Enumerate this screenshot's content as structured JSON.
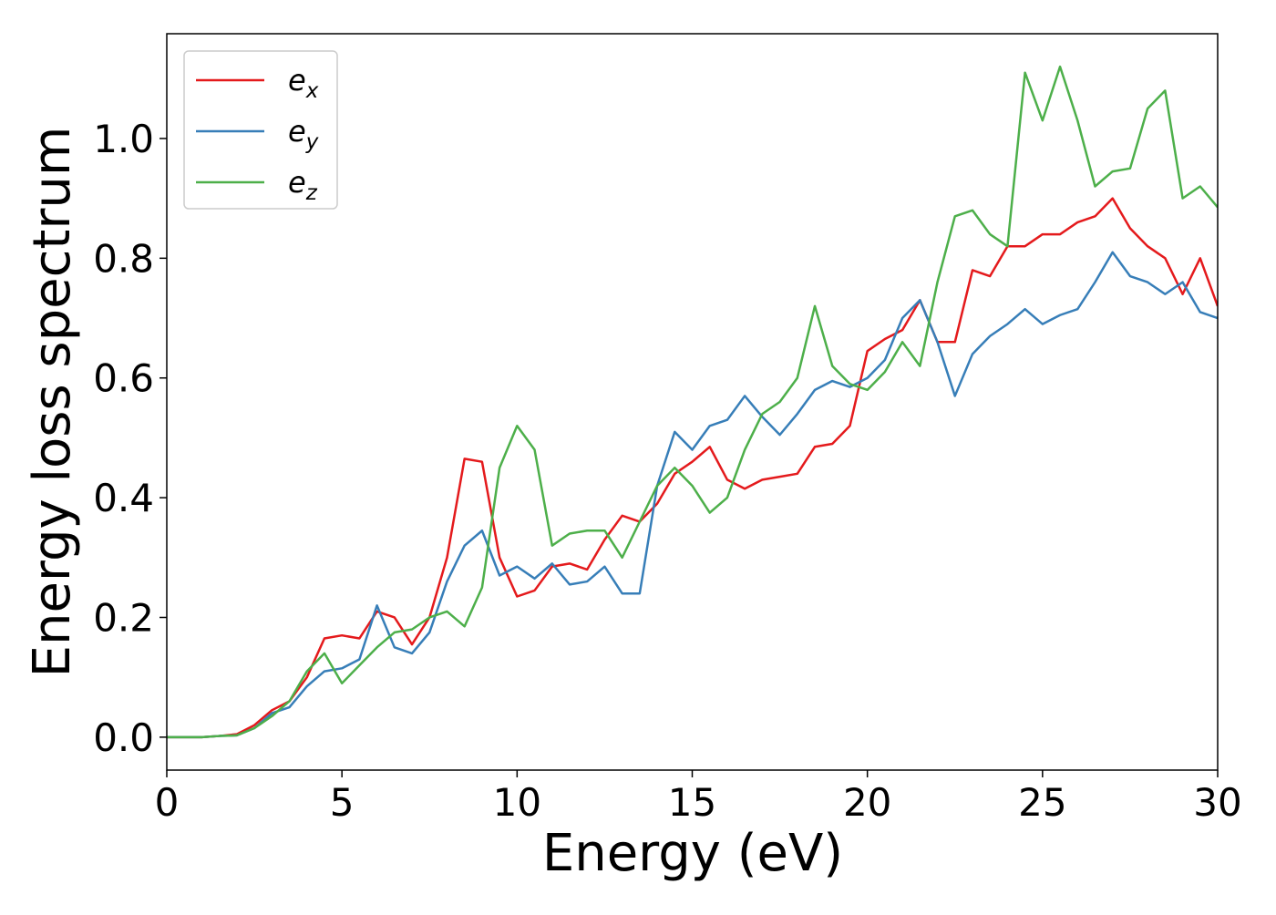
{
  "chart_data": {
    "type": "line",
    "xlabel": "Energy (eV)",
    "ylabel": "Energy loss spectrum",
    "x": [
      0,
      0.5,
      1,
      1.5,
      2,
      2.5,
      3,
      3.5,
      4,
      4.5,
      5,
      5.5,
      6,
      6.5,
      7,
      7.5,
      8,
      8.5,
      9,
      9.5,
      10,
      10.5,
      11,
      11.5,
      12,
      12.5,
      13,
      13.5,
      14,
      14.5,
      15,
      15.5,
      16,
      16.5,
      17,
      17.5,
      18,
      18.5,
      19,
      19.5,
      20,
      20.5,
      21,
      21.5,
      22,
      22.5,
      23,
      23.5,
      24,
      24.5,
      25,
      25.5,
      26,
      26.5,
      27,
      27.5,
      28,
      28.5,
      29,
      29.5,
      30
    ],
    "series": [
      {
        "name": "e",
        "subscript": "x",
        "color": "#e41a1c",
        "values": [
          0,
          0,
          0,
          0.002,
          0.005,
          0.02,
          0.045,
          0.06,
          0.1,
          0.165,
          0.17,
          0.165,
          0.21,
          0.2,
          0.155,
          0.2,
          0.3,
          0.465,
          0.46,
          0.3,
          0.235,
          0.245,
          0.285,
          0.29,
          0.28,
          0.33,
          0.37,
          0.36,
          0.39,
          0.44,
          0.46,
          0.485,
          0.43,
          0.415,
          0.43,
          0.435,
          0.44,
          0.485,
          0.49,
          0.52,
          0.645,
          0.665,
          0.68,
          0.73,
          0.66,
          0.66,
          0.78,
          0.77,
          0.82,
          0.82,
          0.84,
          0.84,
          0.86,
          0.87,
          0.9,
          0.85,
          0.82,
          0.8,
          0.74,
          0.8,
          0.72
        ]
      },
      {
        "name": "e",
        "subscript": "y",
        "color": "#377eb8",
        "values": [
          0,
          0,
          0,
          0.002,
          0.003,
          0.015,
          0.04,
          0.05,
          0.085,
          0.11,
          0.115,
          0.13,
          0.22,
          0.15,
          0.14,
          0.175,
          0.26,
          0.32,
          0.345,
          0.27,
          0.285,
          0.265,
          0.29,
          0.255,
          0.26,
          0.285,
          0.24,
          0.24,
          0.42,
          0.51,
          0.48,
          0.52,
          0.53,
          0.57,
          0.535,
          0.505,
          0.54,
          0.58,
          0.595,
          0.585,
          0.6,
          0.63,
          0.7,
          0.73,
          0.66,
          0.57,
          0.64,
          0.67,
          0.69,
          0.715,
          0.69,
          0.705,
          0.715,
          0.76,
          0.81,
          0.77,
          0.76,
          0.74,
          0.76,
          0.71,
          0.7
        ]
      },
      {
        "name": "e",
        "subscript": "z",
        "color": "#4daf4a",
        "values": [
          0,
          0,
          0,
          0.002,
          0.003,
          0.015,
          0.035,
          0.06,
          0.11,
          0.14,
          0.09,
          0.12,
          0.15,
          0.175,
          0.18,
          0.2,
          0.21,
          0.185,
          0.25,
          0.45,
          0.52,
          0.48,
          0.32,
          0.34,
          0.345,
          0.345,
          0.3,
          0.36,
          0.42,
          0.45,
          0.42,
          0.375,
          0.4,
          0.48,
          0.54,
          0.56,
          0.6,
          0.72,
          0.62,
          0.59,
          0.58,
          0.61,
          0.66,
          0.62,
          0.76,
          0.87,
          0.88,
          0.84,
          0.82,
          1.11,
          1.03,
          1.12,
          1.03,
          0.92,
          0.945,
          0.95,
          1.05,
          1.08,
          0.9,
          0.92,
          0.885
        ]
      }
    ],
    "xlim": [
      0,
      30
    ],
    "xticks": [
      0,
      5,
      10,
      15,
      20,
      25,
      30
    ],
    "ylim": [
      -0.055,
      1.175
    ],
    "yticks": [
      {
        "value": 0,
        "label": "0.0"
      },
      0.2,
      0.4,
      0.6,
      0.8,
      {
        "value": 1,
        "label": "1.0"
      }
    ],
    "legend": "upper left",
    "grid": false
  }
}
